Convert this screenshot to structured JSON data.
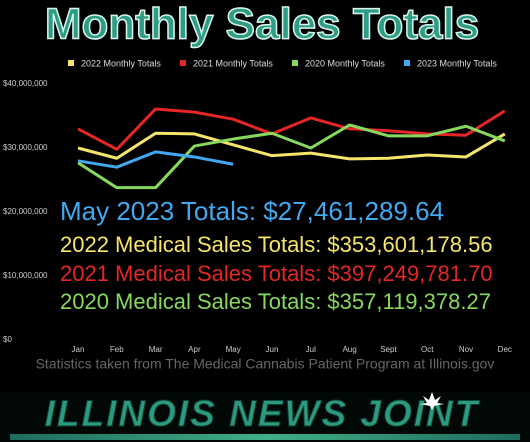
{
  "chart_data": {
    "type": "line",
    "title": "Monthly Sales Totals",
    "categories": [
      "Jan",
      "Feb",
      "Mar",
      "Apr",
      "May",
      "Jun",
      "Jul",
      "Aug",
      "Sept",
      "Oct",
      "Nov",
      "Dec"
    ],
    "series": [
      {
        "name": "2022 Monthly Totals",
        "color": "#f5e56b",
        "values": [
          30000000,
          28400000,
          32300000,
          32200000,
          30500000,
          28800000,
          29200000,
          28300000,
          28400000,
          28900000,
          28600000,
          32200000
        ]
      },
      {
        "name": "2021 Monthly Totals",
        "color": "#e42626",
        "values": [
          33000000,
          29800000,
          36100000,
          35600000,
          34500000,
          32200000,
          34700000,
          33000000,
          32700000,
          32200000,
          32000000,
          35800000
        ]
      },
      {
        "name": "2020 Monthly Totals",
        "color": "#86d85e",
        "values": [
          27700000,
          23800000,
          23800000,
          30300000,
          31400000,
          32300000,
          30000000,
          33600000,
          31900000,
          31900000,
          33400000,
          31100000
        ]
      },
      {
        "name": "2023 Monthly Totals",
        "color": "#42a8f0",
        "values": [
          28000000,
          27000000,
          29400000,
          28600000,
          27461289.64,
          null,
          null,
          null,
          null,
          null,
          null,
          null
        ]
      }
    ],
    "ylim": [
      0,
      40000000
    ],
    "yticks": [
      {
        "value": 0,
        "label": "$0"
      },
      {
        "value": 10000000,
        "label": "$10,000,000"
      },
      {
        "value": 20000000,
        "label": "$20,000,000"
      },
      {
        "value": 30000000,
        "label": "$30,000,000"
      },
      {
        "value": 40000000,
        "label": "$40,000,000"
      }
    ],
    "grid": false,
    "legend": "top",
    "annotations": [
      {
        "text": "May 2023 Totals: $27,461,289.64",
        "color": "#42a8f0"
      },
      {
        "text": "2022 Medical Sales Totals: $353,601,178.56",
        "color": "#f5e56b"
      },
      {
        "text": "2021 Medical Sales Totals: $397,249,781.70",
        "color": "#e42626"
      },
      {
        "text": "2020 Medical Sales Totals: $357,119,378.27",
        "color": "#86d85e"
      }
    ],
    "source": "Statistics taken from The Medical Cannabis Patient Program at Illinois.gov"
  },
  "branding": {
    "name": "ILLINOIS NEWS JOINT"
  }
}
